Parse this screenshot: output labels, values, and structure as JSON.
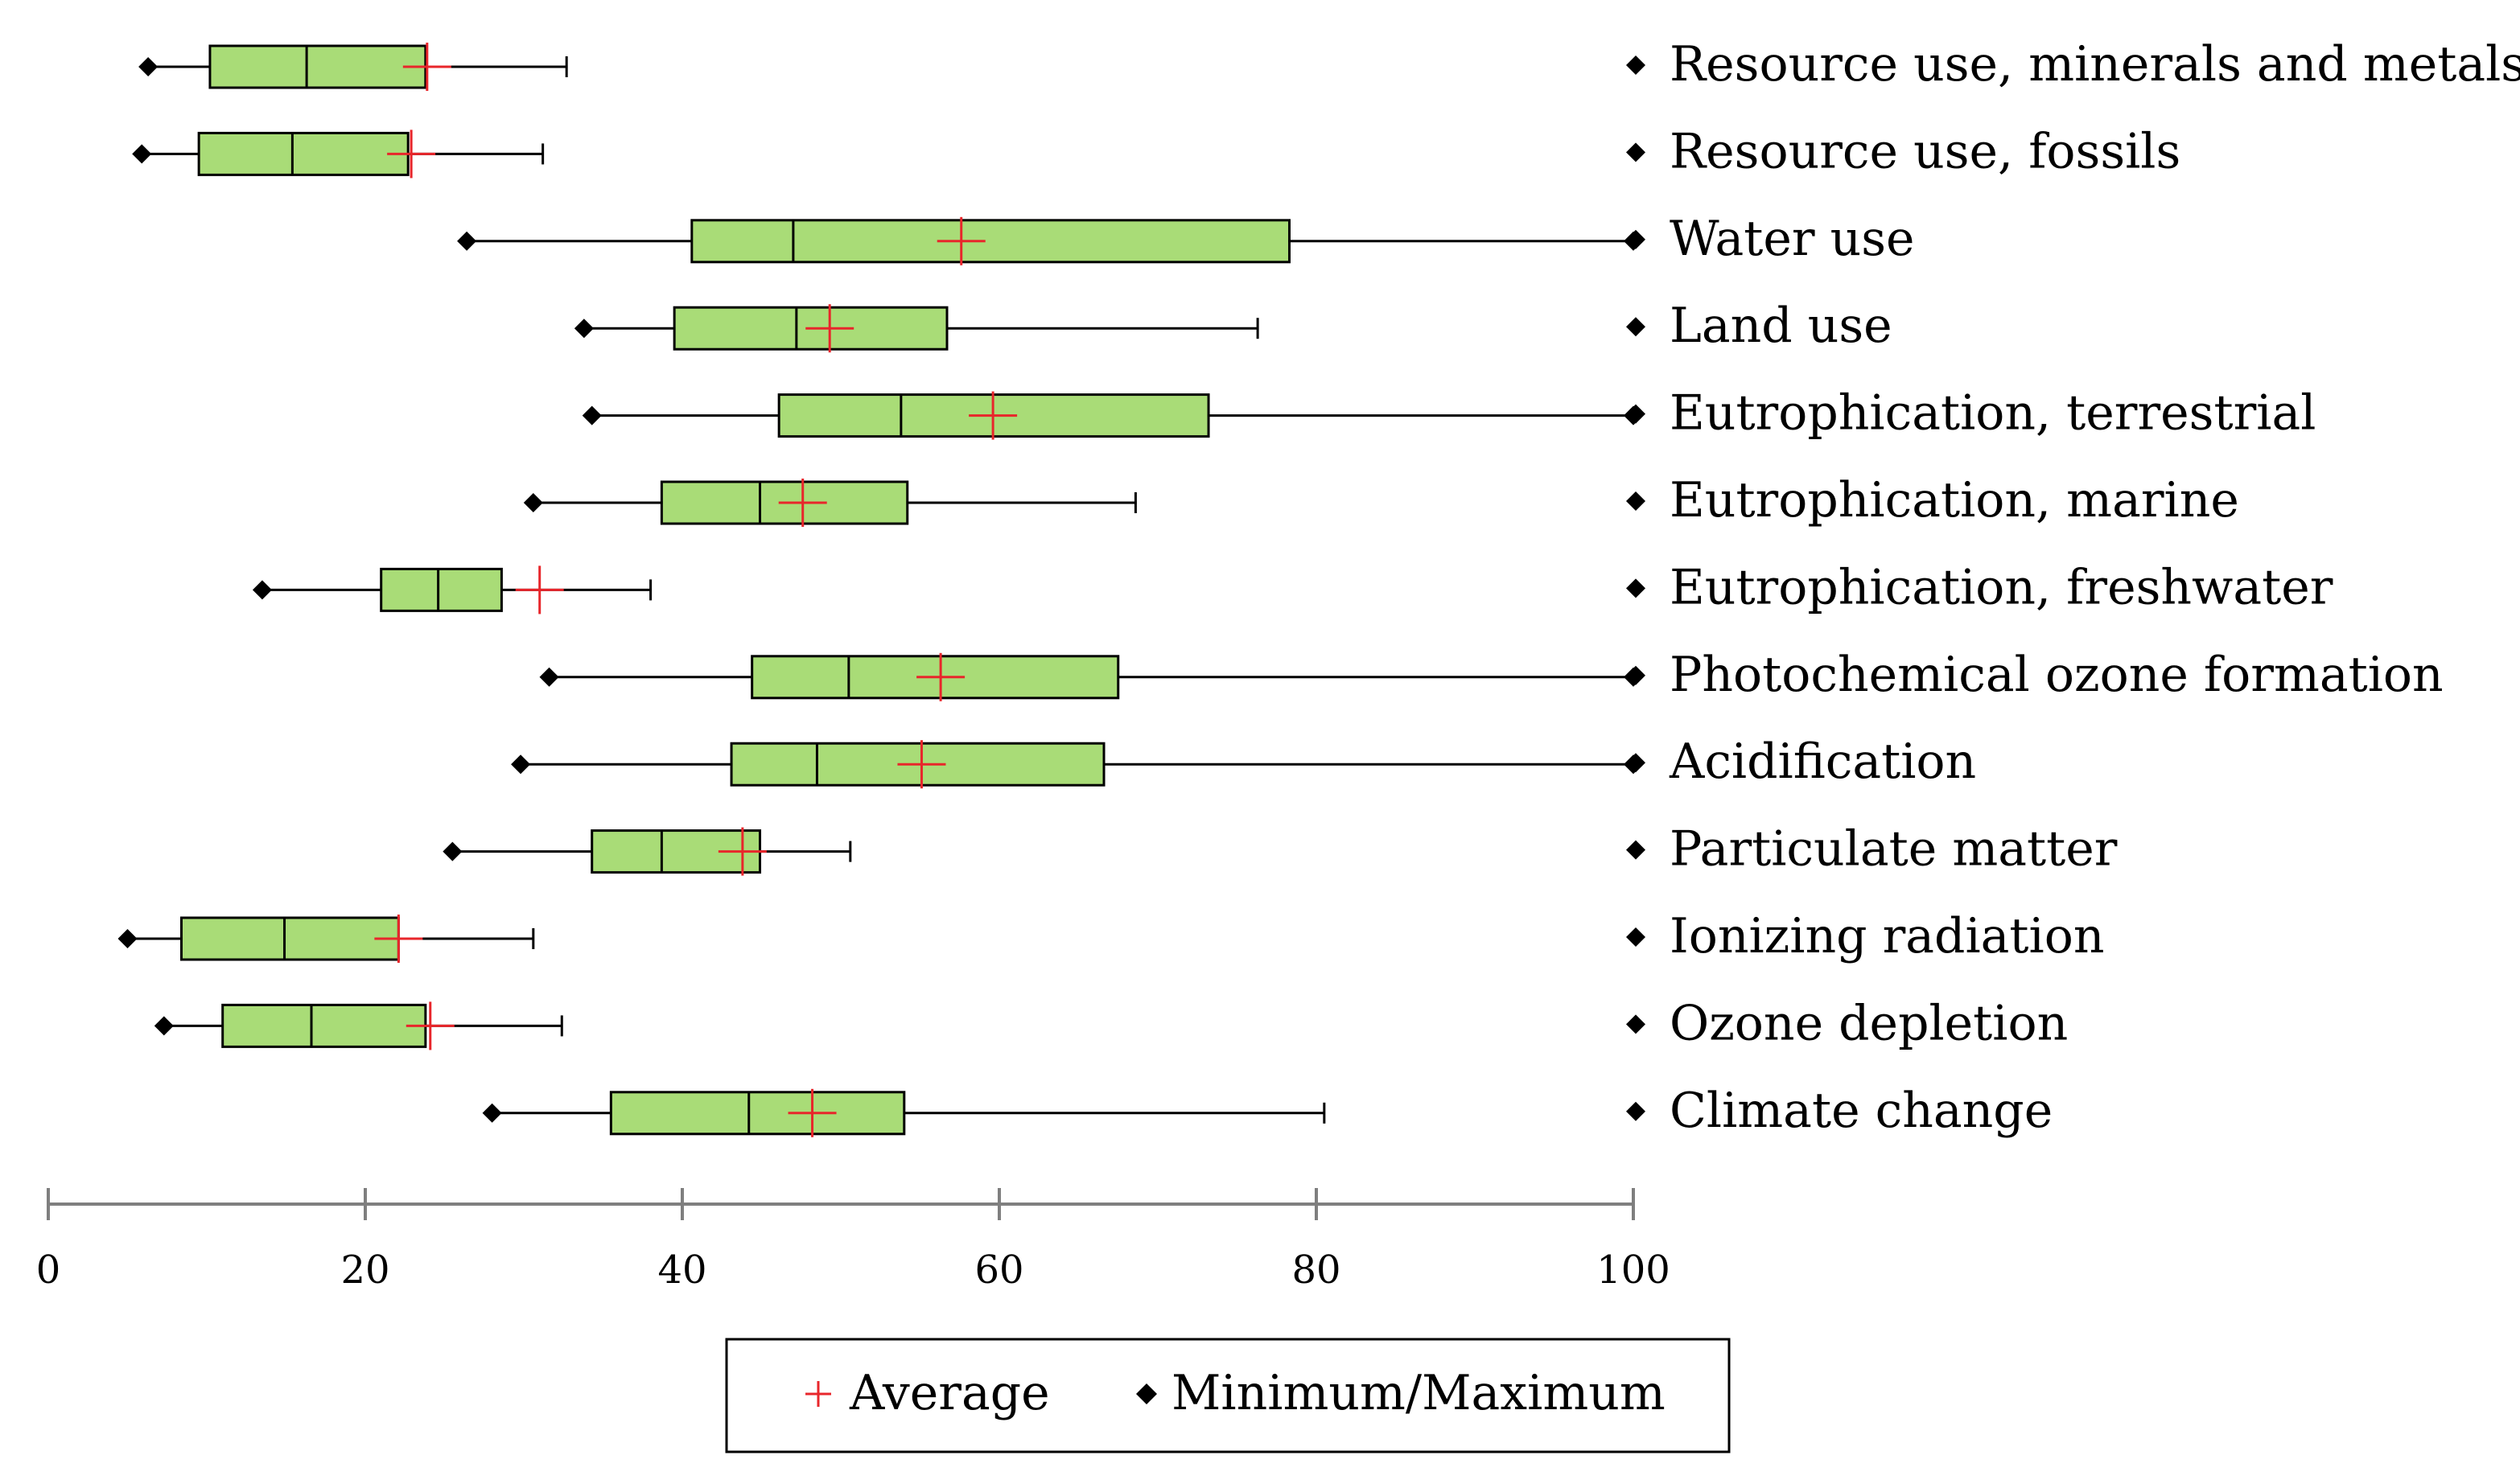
{
  "chart_data": {
    "type": "boxplot",
    "orientation": "horizontal",
    "xlim": [
      0,
      100
    ],
    "xticks": [
      0,
      20,
      40,
      60,
      80,
      100
    ],
    "xtick_labels": [
      "0",
      "20",
      "40",
      "60",
      "80",
      "100"
    ],
    "categories": [
      "Resource use, minerals and metals",
      "Resource use, fossils",
      "Water use",
      "Land use",
      "Eutrophication, terrestrial",
      "Eutrophication, marine",
      "Eutrophication, freshwater",
      "Photochemical ozone formation",
      "Acidification",
      "Particulate matter",
      "Ionizing radiation",
      "Ozone depletion",
      "Climate change"
    ],
    "series": [
      {
        "name": "Resource use, minerals and metals",
        "min": 6.3,
        "q1": 10.2,
        "median": 16.3,
        "q3": 23.8,
        "whisker_high": 32.7,
        "average": 23.9,
        "max": null
      },
      {
        "name": "Resource use, fossils",
        "min": 5.9,
        "q1": 9.5,
        "median": 15.4,
        "q3": 22.7,
        "whisker_high": 31.2,
        "average": 22.9,
        "max": null
      },
      {
        "name": "Water use",
        "min": 26.4,
        "q1": 40.6,
        "median": 47.0,
        "q3": 78.3,
        "whisker_high": 100,
        "average": 57.6,
        "max": 100
      },
      {
        "name": "Land use",
        "min": 33.8,
        "q1": 39.5,
        "median": 47.2,
        "q3": 56.7,
        "whisker_high": 76.3,
        "average": 49.3,
        "max": null
      },
      {
        "name": "Eutrophication, terrestrial",
        "min": 34.3,
        "q1": 46.1,
        "median": 53.8,
        "q3": 73.2,
        "whisker_high": 100,
        "average": 59.6,
        "max": 100
      },
      {
        "name": "Eutrophication, marine",
        "min": 30.6,
        "q1": 38.7,
        "median": 44.9,
        "q3": 54.2,
        "whisker_high": 68.6,
        "average": 47.6,
        "max": null
      },
      {
        "name": "Eutrophication, freshwater",
        "min": 13.5,
        "q1": 21.0,
        "median": 24.6,
        "q3": 28.6,
        "whisker_high": 38.0,
        "average": 31.0,
        "max": null
      },
      {
        "name": "Photochemical ozone formation",
        "min": 31.6,
        "q1": 44.4,
        "median": 50.5,
        "q3": 67.5,
        "whisker_high": 100,
        "average": 56.3,
        "max": 100
      },
      {
        "name": "Acidification",
        "min": 29.8,
        "q1": 43.1,
        "median": 48.5,
        "q3": 66.6,
        "whisker_high": 100,
        "average": 55.1,
        "max": 100
      },
      {
        "name": "Particulate matter",
        "min": 25.5,
        "q1": 34.3,
        "median": 38.7,
        "q3": 44.9,
        "whisker_high": 50.6,
        "average": 43.8,
        "max": null
      },
      {
        "name": "Ionizing radiation",
        "min": 5.0,
        "q1": 8.4,
        "median": 14.9,
        "q3": 22.1,
        "whisker_high": 30.6,
        "average": 22.1,
        "max": null
      },
      {
        "name": "Ozone depletion",
        "min": 7.3,
        "q1": 11.0,
        "median": 16.6,
        "q3": 23.8,
        "whisker_high": 32.4,
        "average": 24.1,
        "max": null
      },
      {
        "name": "Climate change",
        "min": 28.0,
        "q1": 35.5,
        "median": 44.2,
        "q3": 54.0,
        "whisker_high": 80.5,
        "average": 48.2,
        "max": null
      }
    ],
    "legend": {
      "items": [
        {
          "marker": "+",
          "label": "Average",
          "color": "#e8262b"
        },
        {
          "marker": "◆",
          "label": "Minimum/Maximum",
          "color": "#000000"
        }
      ],
      "position": "bottom-center"
    },
    "colors": {
      "box_fill": "#a9dc77",
      "box_stroke": "#000000",
      "average": "#e8262b",
      "marker": "#000000",
      "axis": "#7f7f7f"
    }
  }
}
